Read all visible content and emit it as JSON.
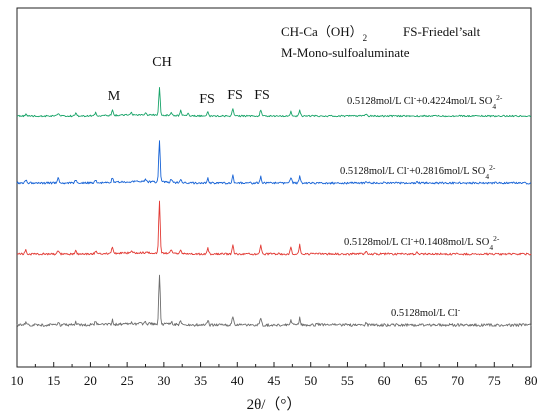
{
  "chart_data": {
    "type": "line",
    "title": "",
    "xlabel": "2θ/（°）",
    "ylabel": "",
    "xlim": [
      10,
      80
    ],
    "x_ticks": [
      "10",
      "15",
      "20",
      "25",
      "30",
      "35",
      "40",
      "45",
      "50",
      "55",
      "60",
      "65",
      "70",
      "75",
      "80"
    ],
    "legend": {
      "line1": "CH-Ca（OH）",
      "line1_sub": "2",
      "line1_right": "FS-Friedel’salt",
      "line2": "M-Mono-sulfoaluminate"
    },
    "annotations": {
      "m": "M",
      "ch": "CH",
      "fs1": "FS",
      "fs2": "FS",
      "fs3": "FS"
    },
    "series": [
      {
        "name": "0.5128mol/L Cl-+0.4224mol/L SO42-",
        "label_parts": [
          "0.5128mol/L Cl",
          "-",
          "+0.4224mol/L SO",
          "4",
          "2-"
        ],
        "color": "#19a469",
        "baseline": 0.8,
        "peaks": [
          [
            11.2,
            2
          ],
          [
            15.6,
            3
          ],
          [
            18.0,
            3
          ],
          [
            20.7,
            3
          ],
          [
            23.0,
            5
          ],
          [
            25.6,
            2
          ],
          [
            27.5,
            2
          ],
          [
            29.4,
            27
          ],
          [
            31.0,
            3
          ],
          [
            32.3,
            5
          ],
          [
            33.3,
            3
          ],
          [
            36.0,
            4
          ],
          [
            39.4,
            7
          ],
          [
            43.2,
            6
          ],
          [
            47.3,
            5
          ],
          [
            48.5,
            6
          ],
          [
            57.5,
            2
          ]
        ]
      },
      {
        "name": "0.5128mol/L Cl-+0.2816mol/L SO42-",
        "label_parts": [
          "0.5128mol/L Cl",
          "-",
          "+0.2816mol/L SO",
          "4",
          "2-"
        ],
        "color": "#1763d6",
        "baseline": 1.0,
        "peaks": [
          [
            11.2,
            3
          ],
          [
            15.6,
            5
          ],
          [
            18.0,
            3
          ],
          [
            20.7,
            3
          ],
          [
            23.0,
            5
          ],
          [
            27.5,
            2
          ],
          [
            29.4,
            42
          ],
          [
            31.0,
            3
          ],
          [
            32.3,
            4
          ],
          [
            36.0,
            5
          ],
          [
            39.4,
            8
          ],
          [
            43.2,
            6
          ],
          [
            47.3,
            6
          ],
          [
            48.5,
            7
          ],
          [
            57.5,
            2
          ],
          [
            64.5,
            2
          ]
        ]
      },
      {
        "name": "0.5128mol/L Cl-+0.1408mol/L SO42-",
        "label_parts": [
          "0.5128mol/L Cl",
          "-",
          "+0.1408mol/L SO",
          "4",
          "2-"
        ],
        "color": "#e23a34",
        "baseline": 1.0,
        "peaks": [
          [
            11.2,
            5
          ],
          [
            15.6,
            3
          ],
          [
            18.0,
            3
          ],
          [
            20.7,
            3
          ],
          [
            23.0,
            7
          ],
          [
            25.6,
            2
          ],
          [
            29.4,
            52
          ],
          [
            31.0,
            3
          ],
          [
            32.3,
            4
          ],
          [
            36.0,
            6
          ],
          [
            39.4,
            9
          ],
          [
            43.2,
            8
          ],
          [
            47.3,
            7
          ],
          [
            48.5,
            9
          ],
          [
            57.5,
            3
          ],
          [
            64.5,
            2
          ]
        ]
      },
      {
        "name": "0.5128mol/L Cl-",
        "label_parts": [
          "0.5128mol/L Cl",
          "-",
          "",
          "",
          ""
        ],
        "color": "#6d6d6d",
        "baseline": 1.4,
        "peaks": [
          [
            11.2,
            3
          ],
          [
            15.6,
            2
          ],
          [
            18.0,
            3
          ],
          [
            20.7,
            3
          ],
          [
            23.0,
            4
          ],
          [
            25.6,
            2
          ],
          [
            27.5,
            2
          ],
          [
            29.4,
            50
          ],
          [
            31.0,
            3
          ],
          [
            32.3,
            4
          ],
          [
            36.0,
            5
          ],
          [
            39.4,
            8
          ],
          [
            43.2,
            7
          ],
          [
            47.3,
            6
          ],
          [
            48.5,
            7
          ],
          [
            50.9,
            2
          ],
          [
            57.5,
            2
          ]
        ]
      }
    ]
  }
}
